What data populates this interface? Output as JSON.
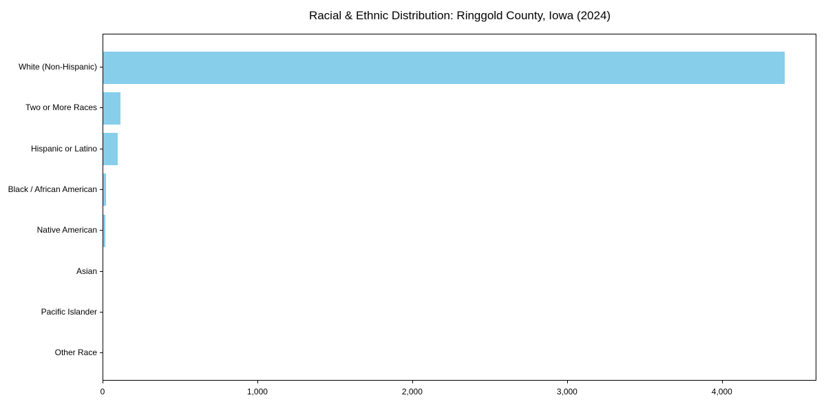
{
  "chart_data": {
    "type": "bar",
    "orientation": "horizontal",
    "title": "Racial & Ethnic Distribution: Ringgold County, Iowa (2024)",
    "categories": [
      "White (Non-Hispanic)",
      "Two or More Races",
      "Hispanic or Latino",
      "Black / African American",
      "Native American",
      "Asian",
      "Pacific Islander",
      "Other Race"
    ],
    "values": [
      4400,
      110,
      95,
      20,
      15,
      0,
      0,
      0
    ],
    "xlabel": "",
    "ylabel": "",
    "xlim": [
      0,
      4610
    ],
    "xticks": [
      0,
      1000,
      2000,
      3000,
      4000
    ],
    "xtick_labels": [
      "0",
      "1,000",
      "2,000",
      "3,000",
      "4,000"
    ],
    "grid": false,
    "legend": null,
    "bar_color": "#87CEEB"
  },
  "colors": {
    "bar": "#87CEEB",
    "axis": "#000000",
    "text": "#000000",
    "background": "#FFFFFF"
  }
}
